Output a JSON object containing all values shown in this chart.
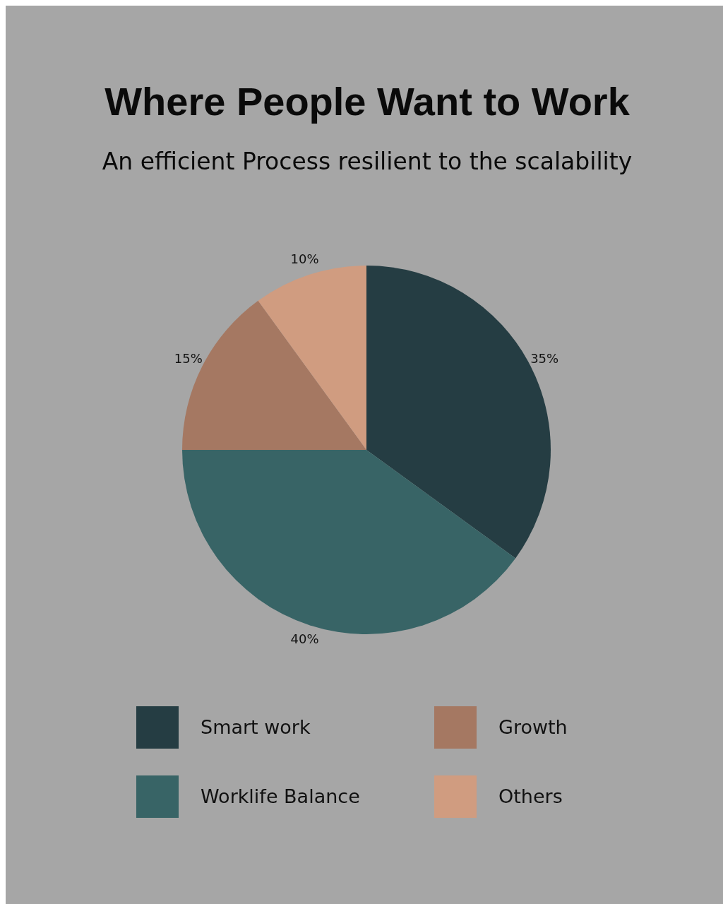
{
  "chart_data": {
    "type": "pie",
    "title": "Where People Want to Work",
    "subtitle": "An efficient Process resilient to the scalability",
    "categories": [
      "Smart work",
      "Worklife Balance",
      "Growth",
      "Others"
    ],
    "values": [
      35,
      40,
      15,
      10
    ],
    "colors": [
      "#253d43",
      "#386466",
      "#a57862",
      "#d09c80"
    ],
    "value_labels": [
      "35%",
      "40%",
      "15%",
      "10%"
    ],
    "legend": "bottom"
  }
}
